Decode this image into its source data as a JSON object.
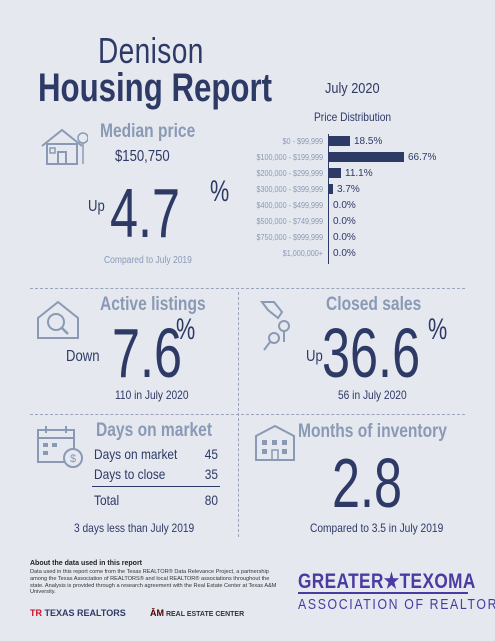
{
  "header": {
    "city": "Denison",
    "report": "Housing Report",
    "month": "July 2020"
  },
  "median_price": {
    "title": "Median price",
    "value": "$150,750",
    "direction": "Up",
    "change": "4.7",
    "pct_symbol": "%",
    "comparison": "Compared to July 2019"
  },
  "price_distribution": {
    "title": "Price Distribution",
    "rows": [
      {
        "label": "$0 - $99,999",
        "value": "18.5%",
        "share": 18.5
      },
      {
        "label": "$100,000 - $199,999",
        "value": "66.7%",
        "share": 66.7
      },
      {
        "label": "$200,000 - $299,999",
        "value": "11.1%",
        "share": 11.1
      },
      {
        "label": "$300,000 - $399,999",
        "value": "3.7%",
        "share": 3.7
      },
      {
        "label": "$400,000 - $499,999",
        "value": "0.0%",
        "share": 0
      },
      {
        "label": "$500,000 - $749,999",
        "value": "0.0%",
        "share": 0
      },
      {
        "label": "$750,000 - $999,999",
        "value": "0.0%",
        "share": 0
      },
      {
        "label": "$1,000,000+",
        "value": "0.0%",
        "share": 0
      }
    ]
  },
  "active_listings": {
    "title": "Active listings",
    "direction": "Down",
    "change": "7.6",
    "pct_symbol": "%",
    "note": "110 in July 2020"
  },
  "closed_sales": {
    "title": "Closed sales",
    "direction": "Up",
    "change": "36.6",
    "pct_symbol": "%",
    "note": "56 in July 2020"
  },
  "days_on_market": {
    "title": "Days on market",
    "rows": [
      {
        "label": "Days on market",
        "value": "45"
      },
      {
        "label": "Days to close",
        "value": "35"
      }
    ],
    "total_label": "Total",
    "total_value": "80",
    "note": "3 days less than July 2019"
  },
  "months_inventory": {
    "title": "Months of inventory",
    "value": "2.8",
    "note": "Compared to 3.5 in July 2019"
  },
  "footer": {
    "heading": "About the data used in this report",
    "text": "Data used in this report come from the Texas REALTOR® Data Relevance Project, a partnership among the Texas Association of REALTORS® and local REALTOR® associations throughout the state. Analysis is provided through a research agreement with the Real Estate Center at Texas A&M University.",
    "logo_texas_realtors": "TEXAS REALTORS",
    "logo_rec": "REAL ESTATE CENTER",
    "association_line1": "GREATER★TEXOMA",
    "association_line2": "ASSOCIATION OF REALTORS"
  },
  "colors": {
    "navy": "#2e3a66",
    "slate": "#8a9ab5",
    "background": "#e5e8ef",
    "association_purple": "#4a3aa2"
  }
}
